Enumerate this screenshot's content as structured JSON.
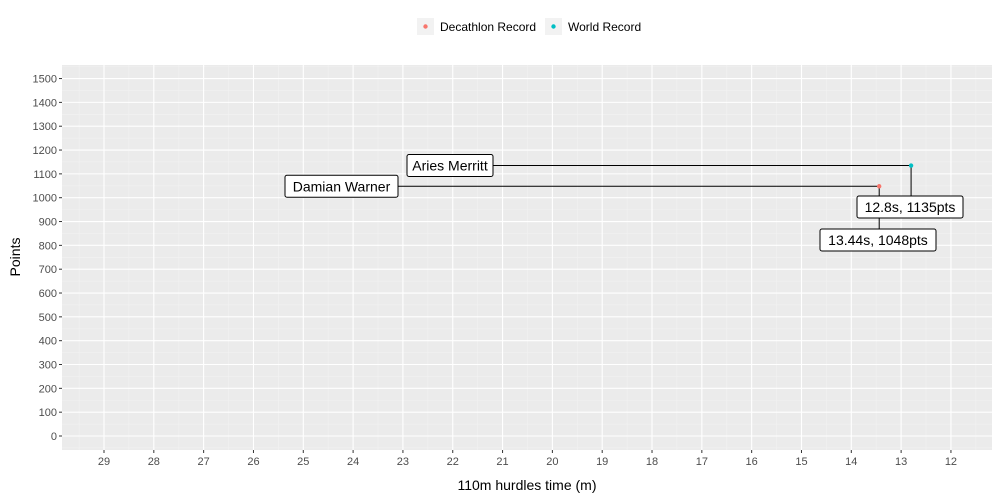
{
  "chart_data": {
    "type": "scatter",
    "xlabel": "110m hurdles time (m)",
    "ylabel": "Points",
    "xlim": [
      29.8,
      11.3
    ],
    "x_reversed": true,
    "ylim": [
      -60,
      1570
    ],
    "x_ticks": [
      "29",
      "28",
      "27",
      "26",
      "25",
      "24",
      "23",
      "22",
      "21",
      "20",
      "19",
      "18",
      "17",
      "16",
      "15",
      "14",
      "13",
      "12"
    ],
    "y_ticks": [
      "0",
      "100",
      "200",
      "300",
      "400",
      "500",
      "600",
      "700",
      "800",
      "900",
      "1000",
      "1100",
      "1200",
      "1300",
      "1400",
      "1500"
    ],
    "grid": true,
    "legend_position": "top",
    "series": [
      {
        "name": "Decathlon Record",
        "color": "#F8766D",
        "points": [
          {
            "x": 13.44,
            "y": 1048
          }
        ]
      },
      {
        "name": "World Record",
        "color": "#00BFC4",
        "points": [
          {
            "x": 12.8,
            "y": 1135
          }
        ]
      }
    ],
    "annotations": [
      {
        "name_label": "Damian Warner",
        "value_label": "13.44s, 1048pts"
      },
      {
        "name_label": "Aries Merritt",
        "value_label": "12.8s, 1135pts"
      }
    ]
  }
}
